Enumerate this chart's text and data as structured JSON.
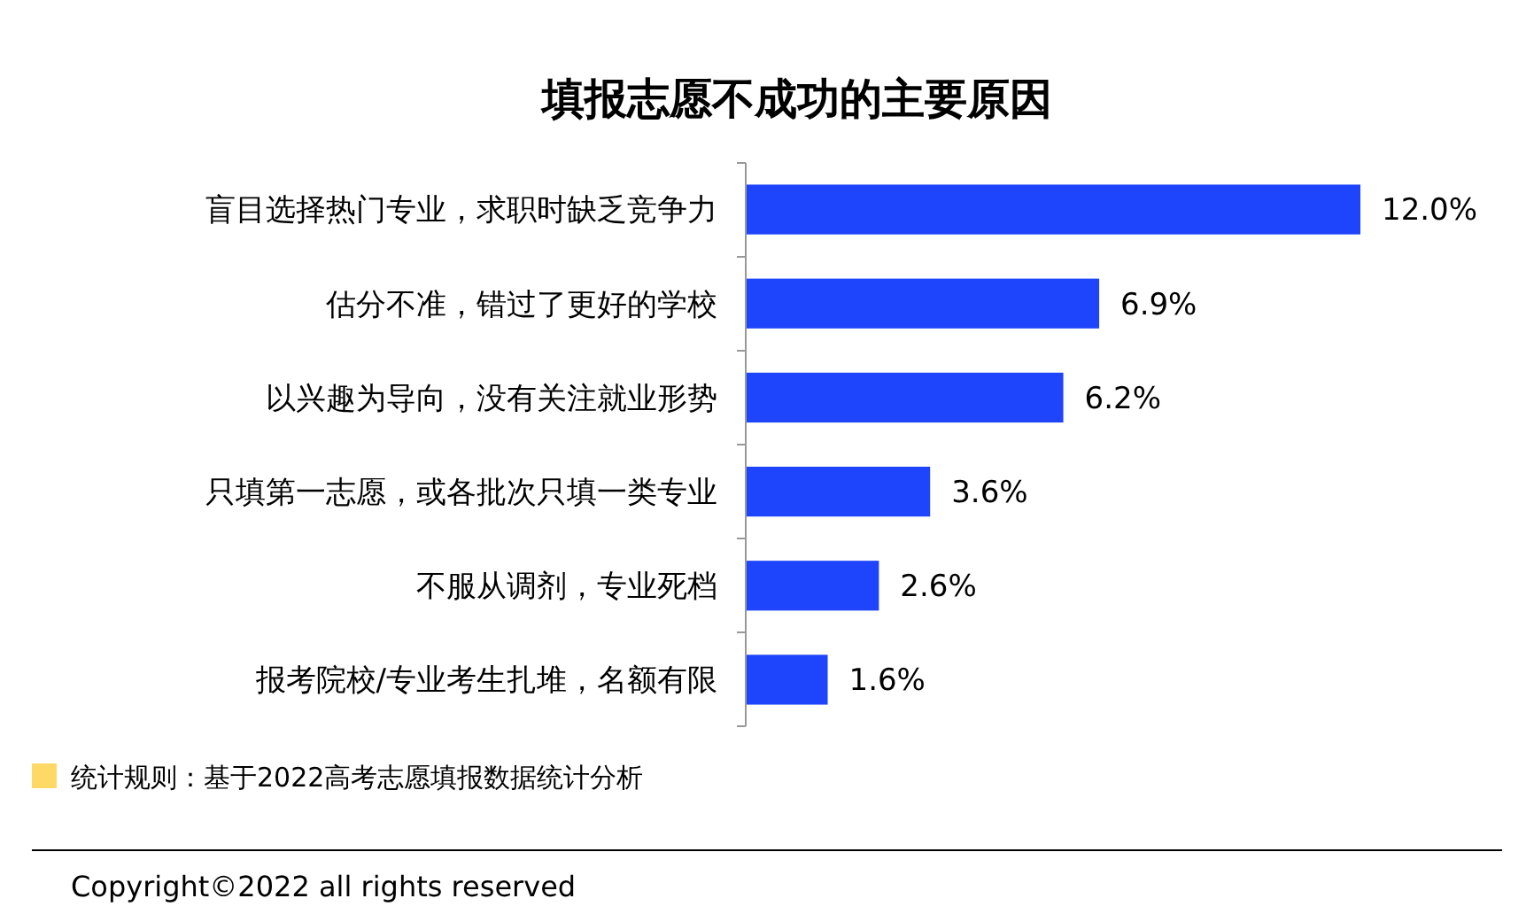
{
  "chart_data": {
    "type": "bar",
    "orientation": "horizontal",
    "title": "填报志愿不成功的主要原因",
    "categories": [
      "盲目选择热门专业，求职时缺乏竞争力",
      "估分不准，错过了更好的学校",
      "以兴趣为导向，没有关注就业形势",
      "只填第一志愿，或各批次只填一类专业",
      "不服从调剂，专业死档",
      "报考院校/专业考生扎堆，名额有限"
    ],
    "values": [
      12.0,
      6.9,
      6.2,
      3.6,
      2.6,
      1.6
    ],
    "value_labels": [
      "12.0%",
      "6.9%",
      "6.2%",
      "3.6%",
      "2.6%",
      "1.6%"
    ],
    "color": "#1f45fc",
    "annotations": [
      "统计规则：基于2022高考志愿填报数据统计分析",
      "Copyright©2022 all rights reserved"
    ]
  }
}
